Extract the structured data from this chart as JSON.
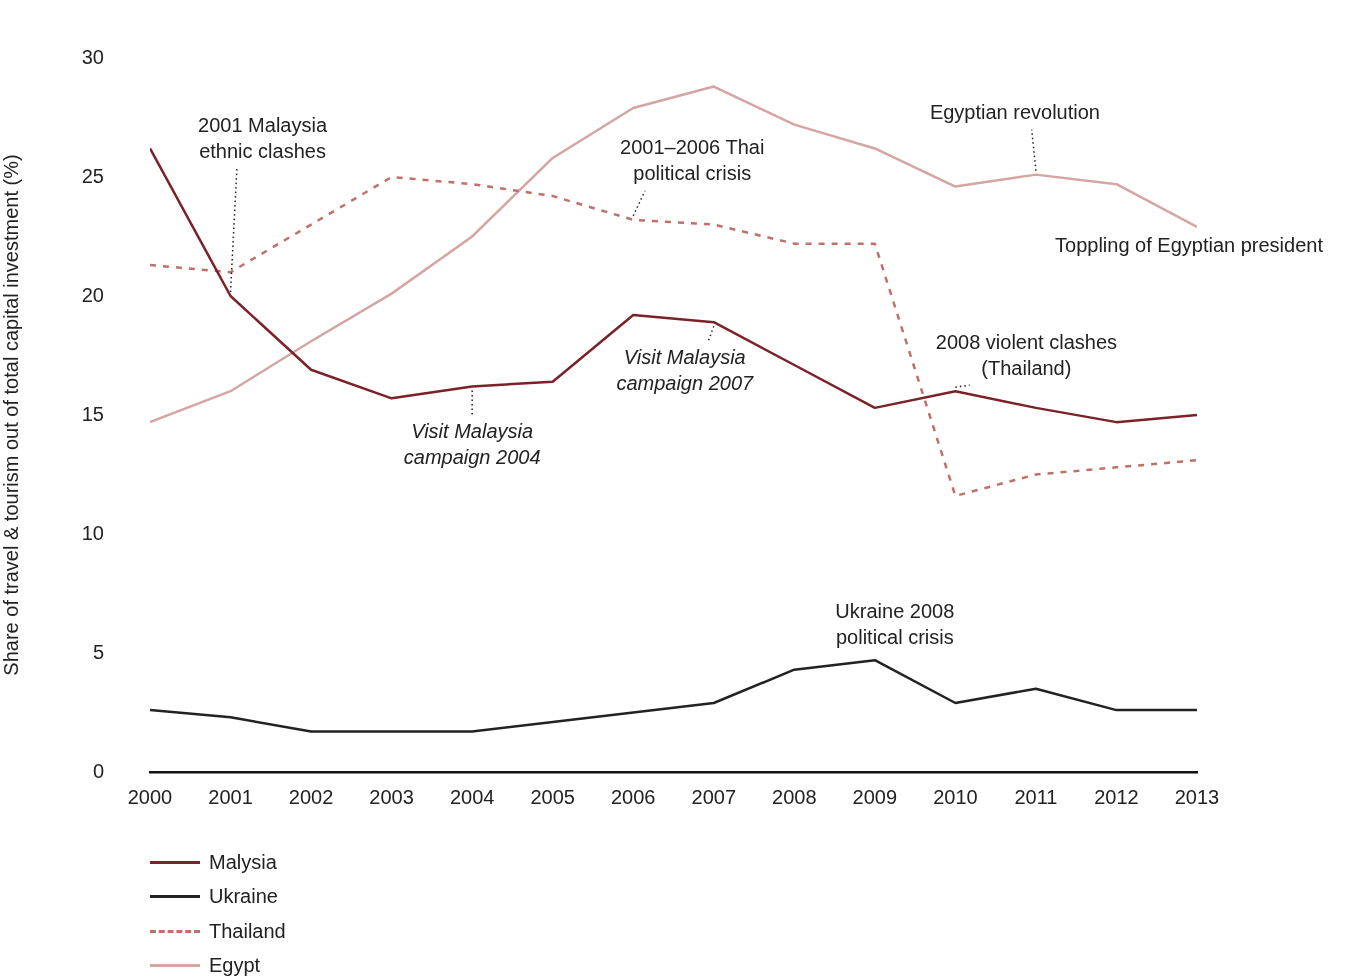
{
  "chart_data": {
    "type": "line",
    "ylabel": "Share of travel & tourism out of total capital investment (%)",
    "x": [
      2000,
      2001,
      2002,
      2003,
      2004,
      2005,
      2006,
      2007,
      2008,
      2009,
      2010,
      2011,
      2012,
      2013
    ],
    "xlim": [
      2000,
      2013
    ],
    "xticks": [
      2000,
      2001,
      2002,
      2003,
      2004,
      2005,
      2006,
      2007,
      2008,
      2009,
      2010,
      2011,
      2012,
      2013
    ],
    "ylim": [
      0,
      30
    ],
    "yticks": [
      0,
      5,
      10,
      15,
      20,
      25,
      30
    ],
    "grid": false,
    "legend": "bottom left",
    "marker": "none",
    "series": [
      {
        "name": "Malysia",
        "color": "#7b2128",
        "line_style": "solid",
        "values": [
          26.2,
          20.0,
          16.9,
          15.7,
          16.2,
          16.4,
          19.2,
          18.9,
          17.1,
          15.3,
          16.0,
          15.3,
          14.7,
          15.0
        ]
      },
      {
        "name": "Ukraine",
        "color": "#222222",
        "line_style": "solid",
        "values": [
          2.6,
          2.3,
          1.7,
          1.7,
          1.7,
          2.1,
          2.5,
          2.9,
          4.3,
          4.7,
          2.9,
          3.5,
          2.6,
          2.6
        ]
      },
      {
        "name": "Thailand",
        "color": "#c0706a",
        "line_style": "dashed",
        "values": [
          21.3,
          21.0,
          23.0,
          25.0,
          24.7,
          24.2,
          23.2,
          23.0,
          22.2,
          22.2,
          11.6,
          12.5,
          12.8,
          13.1
        ]
      },
      {
        "name": "Egypt",
        "color": "#d4a5a3",
        "line_style": "solid",
        "values": [
          14.7,
          16.0,
          18.1,
          20.1,
          22.5,
          25.8,
          27.9,
          28.8,
          27.2,
          26.2,
          24.6,
          25.1,
          24.7,
          22.9
        ]
      }
    ],
    "annotations": [
      {
        "text": "2001 Malaysia ethnic clashes",
        "x": 2001,
        "y": 20.0
      },
      {
        "text": "2001–2006 Thai political crisis",
        "x": 2006,
        "y": 23.2
      },
      {
        "text": "Visit Malaysia campaign 2004",
        "x": 2004,
        "y": 16.2
      },
      {
        "text": "Visit Malaysia campaign 2007",
        "x": 2007,
        "y": 18.9
      },
      {
        "text": "Egyptian revolution",
        "x": 2011,
        "y": 25.1
      },
      {
        "text": "Toppling of Egyptian president",
        "x": 2013,
        "y": 22.9
      },
      {
        "text": "2008 violent clashes (Thailand)",
        "x": 2010,
        "y": 16.0
      },
      {
        "text": "Ukraine 2008 political crisis",
        "x": 2009,
        "y": 4.7
      }
    ]
  }
}
